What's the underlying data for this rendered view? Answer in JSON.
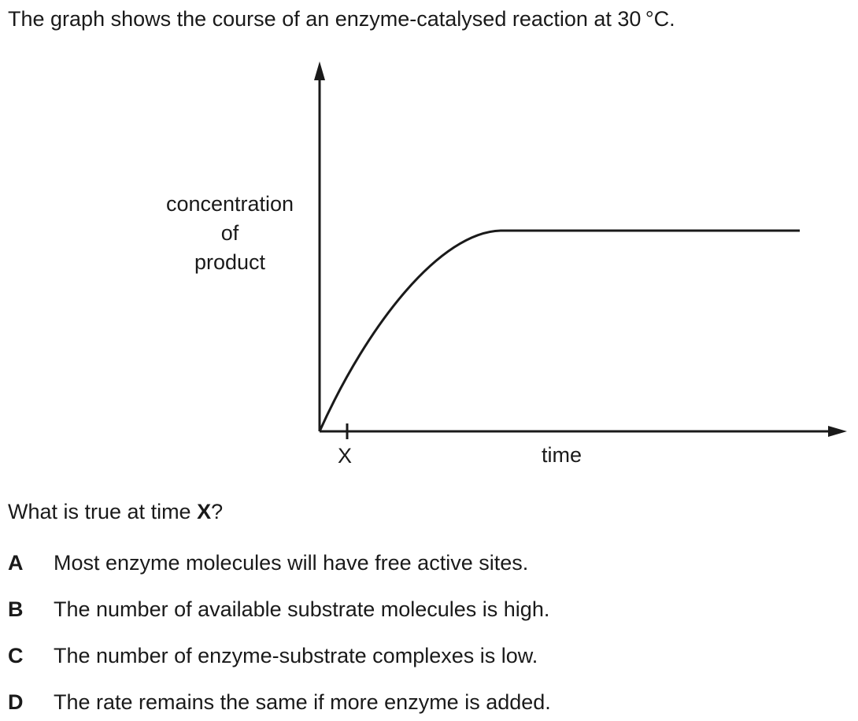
{
  "question": {
    "stem_text": "The graph shows the course of an enzyme-catalysed reaction at 30 °C.",
    "prompt_prefix": "What is true at time ",
    "prompt_emphasis": "X",
    "prompt_suffix": "?"
  },
  "graph": {
    "y_label_lines": [
      "concentration",
      "of",
      "product"
    ],
    "x_label": "time",
    "x_tick_label": "X",
    "curve": {
      "shape": "rises steeply from the origin, decelerates, then levels off to a horizontal plateau"
    }
  },
  "options": [
    {
      "letter": "A",
      "text": "Most enzyme molecules will have free active sites."
    },
    {
      "letter": "B",
      "text": "The number of available substrate molecules is high."
    },
    {
      "letter": "C",
      "text": "The number of enzyme-substrate complexes is low."
    },
    {
      "letter": "D",
      "text": "The rate remains the same if more enzyme is added."
    }
  ]
}
